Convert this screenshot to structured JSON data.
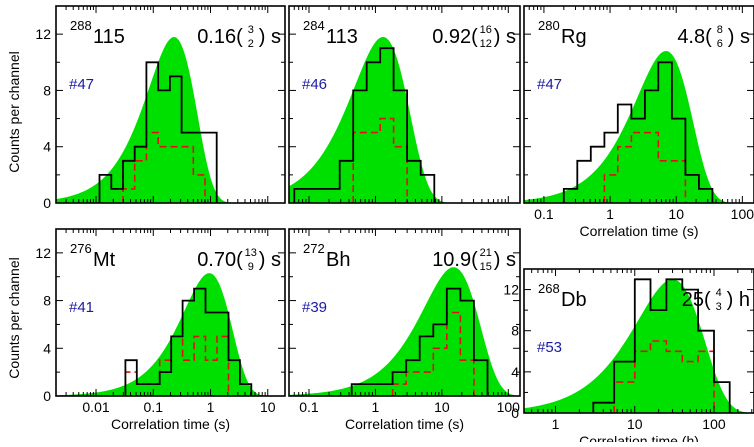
{
  "figure": {
    "y_axis_title_top": "Counts per channel",
    "y_axis_title_bottom": "Counts per channel",
    "x_axis_title_seconds": "Correlation time (s)",
    "x_axis_title_hours": "Correlation time (h)"
  },
  "colors": {
    "fit_fill": "#00e000",
    "histogram": "#000000",
    "dashed_histogram": "#e01010",
    "sample_label": "#1a1aa6"
  },
  "chart_data": [
    {
      "type": "bar",
      "panel": "288-115",
      "mass": "288",
      "element": "115",
      "value": "0.16",
      "err_up": "3",
      "err_down": "2",
      "unit": "s",
      "sample": "#47",
      "x_scale": "log",
      "xlim": [
        0.002,
        20
      ],
      "ylim": [
        0,
        14
      ],
      "y_ticks": [
        "0",
        "4",
        "8",
        "12"
      ],
      "x_tick_labels": [],
      "x_axis_title": "",
      "fit_peak": {
        "x": 0.23,
        "height": 11.8
      },
      "bins_solid": {
        "edges": [
          0.0115,
          0.0185,
          0.0296,
          0.0474,
          0.076,
          0.122,
          0.195,
          0.312,
          0.5,
          0.8,
          1.28
        ],
        "counts": [
          2,
          1,
          3,
          4,
          10,
          8,
          9,
          5,
          5,
          5
        ]
      },
      "bins_dashed": {
        "edges": [
          0.0296,
          0.0474,
          0.076,
          0.122,
          0.195,
          0.312,
          0.5,
          0.8
        ],
        "counts": [
          1,
          3,
          5,
          4,
          4,
          4,
          2
        ]
      }
    },
    {
      "type": "bar",
      "panel": "284-113",
      "mass": "284",
      "element": "113",
      "value": "0.92",
      "err_up": "16",
      "err_down": "12",
      "unit": "s",
      "sample": "#46",
      "x_scale": "log",
      "xlim": [
        0.05,
        150
      ],
      "ylim": [
        0,
        14
      ],
      "y_ticks": [],
      "x_tick_labels": [],
      "x_axis_title": "",
      "fit_peak": {
        "x": 1.3,
        "height": 11.8
      },
      "bins_solid": {
        "edges": [
          0.06,
          0.131,
          0.29,
          0.463,
          0.74,
          1.18,
          1.88,
          3.0,
          4.8,
          7.7
        ],
        "counts": [
          1,
          1,
          3,
          8,
          10,
          11,
          8,
          3,
          2
        ]
      },
      "bins_dashed": {
        "edges": [
          0.463,
          0.74,
          1.18,
          1.88,
          3.0
        ],
        "counts": [
          5,
          5,
          6,
          4
        ]
      }
    },
    {
      "type": "bar",
      "panel": "280-Rg",
      "mass": "280",
      "element": "Rg",
      "value": "4.8",
      "err_up": "8",
      "err_down": "6",
      "unit": "s",
      "sample": "#47",
      "x_scale": "log",
      "xlim": [
        0.05,
        150
      ],
      "ylim": [
        0,
        14
      ],
      "y_ticks": [],
      "x_tick_labels": [
        "0.1",
        "1",
        "10",
        "100"
      ],
      "x_axis_title": "Correlation time (s)",
      "fit_peak": {
        "x": 7.0,
        "height": 10.8
      },
      "bins_solid": {
        "edges": [
          0.2,
          0.32,
          0.512,
          0.82,
          1.31,
          2.1,
          3.36,
          5.37,
          8.6,
          13.75,
          22.0,
          35.2
        ],
        "counts": [
          1,
          3,
          4,
          5,
          7,
          6,
          8,
          10,
          6,
          2,
          1
        ]
      },
      "bins_dashed": {
        "edges": [
          0.82,
          1.31,
          2.1,
          3.36,
          5.37,
          8.6,
          13.75
        ],
        "counts": [
          2,
          4,
          5,
          5,
          3,
          3
        ]
      }
    },
    {
      "type": "bar",
      "panel": "276-Mt",
      "mass": "276",
      "element": "Mt",
      "value": "0.70",
      "err_up": "13",
      "err_down": "9",
      "unit": "s",
      "sample": "#41",
      "x_scale": "log",
      "xlim": [
        0.002,
        20
      ],
      "ylim": [
        0,
        14
      ],
      "y_ticks": [
        "0",
        "4",
        "8",
        "12"
      ],
      "x_tick_labels": [
        "0.01",
        "0.1",
        "1",
        "10"
      ],
      "x_axis_title": "Correlation time (s)",
      "fit_peak": {
        "x": 0.95,
        "height": 10.3
      },
      "bins_solid": {
        "edges": [
          0.0326,
          0.0516,
          0.0818,
          0.1297,
          0.206,
          0.326,
          0.516,
          0.818,
          1.297,
          2.06,
          3.26,
          5.16
        ],
        "counts": [
          3,
          1,
          1,
          2,
          5,
          8,
          9,
          7,
          7,
          3,
          1
        ]
      },
      "bins_dashed": {
        "edges": [
          0.0326,
          0.0516,
          0.0818,
          0.1297,
          0.206,
          0.326,
          0.516,
          0.818,
          1.297,
          2.06
        ],
        "counts": [
          2,
          1,
          1,
          3,
          5,
          3,
          5,
          3,
          5
        ]
      }
    },
    {
      "type": "bar",
      "panel": "272-Bh",
      "mass": "272",
      "element": "Bh",
      "value": "10.9",
      "err_up": "21",
      "err_down": "15",
      "unit": "s",
      "sample": "#39",
      "x_scale": "log",
      "xlim": [
        0.05,
        150
      ],
      "ylim": [
        0,
        14
      ],
      "y_ticks": [],
      "x_tick_labels": [
        "0.1",
        "1",
        "10",
        "100"
      ],
      "x_axis_title": "Correlation time (s)",
      "fit_peak": {
        "x": 15.0,
        "height": 10.8
      },
      "bins_solid": {
        "edges": [
          0.44,
          0.71,
          1.13,
          1.81,
          2.9,
          4.64,
          7.42,
          11.88,
          19.0,
          30.4,
          48.6
        ],
        "counts": [
          1,
          1,
          1,
          2,
          3,
          5,
          6,
          9,
          8,
          3
        ]
      },
      "bins_dashed": {
        "edges": [
          1.81,
          2.9,
          4.64,
          7.42,
          11.88,
          19.0,
          30.4
        ],
        "counts": [
          1,
          2,
          2,
          4,
          7,
          3
        ]
      }
    },
    {
      "type": "bar",
      "panel": "268-Db",
      "mass": "268",
      "element": "Db",
      "value": "25",
      "err_up": "4",
      "err_down": "3",
      "unit": "h",
      "sample": "#53",
      "x_scale": "log",
      "xlim": [
        0.4,
        320
      ],
      "ylim": [
        0,
        14
      ],
      "y_ticks": [
        "0",
        "4",
        "8",
        "12"
      ],
      "x_tick_labels": [
        "1",
        "10",
        "100"
      ],
      "x_axis_title": "Correlation time (h)",
      "fit_peak": {
        "x": 30.0,
        "height": 13.0
      },
      "bins_solid": {
        "edges": [
          3.0,
          5.5,
          10.0,
          15.8,
          25.1,
          39.8,
          63.1,
          100.0,
          158.0
        ],
        "counts": [
          1,
          5,
          13,
          10,
          13,
          12,
          8,
          3
        ]
      },
      "bins_dashed": {
        "edges": [
          5.5,
          10.0,
          15.8,
          25.1,
          39.8,
          63.1,
          100.0
        ],
        "counts": [
          3,
          6,
          7,
          6,
          5,
          6
        ]
      }
    }
  ]
}
